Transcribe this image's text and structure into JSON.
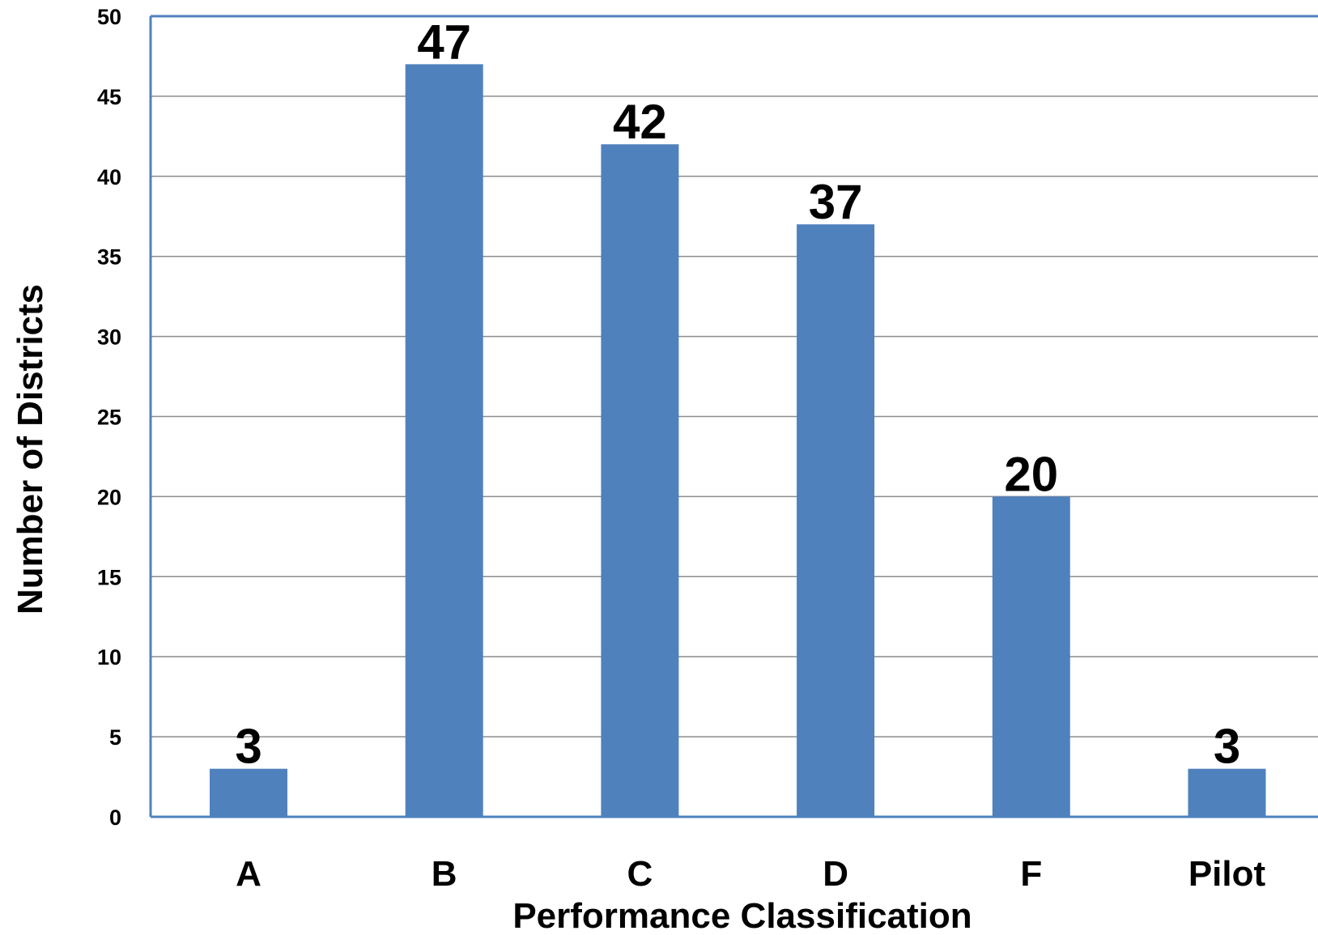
{
  "chart_data": {
    "type": "bar",
    "categories": [
      "A",
      "B",
      "C",
      "D",
      "F",
      "Pilot"
    ],
    "values": [
      3,
      47,
      42,
      37,
      20,
      3
    ],
    "data_labels": [
      "3",
      "47",
      "42",
      "37",
      "20",
      "3"
    ],
    "title": "",
    "xlabel": "Performance Classification",
    "ylabel": "Number of Districts",
    "ylim": [
      0,
      50
    ],
    "yticks": [
      0,
      5,
      10,
      15,
      20,
      25,
      30,
      35,
      40,
      45,
      50
    ],
    "grid": true,
    "legend": "none",
    "colors": {
      "bar": "#4f81bd",
      "grid": "#8c8c8c",
      "axis": "#4f81bd"
    }
  }
}
